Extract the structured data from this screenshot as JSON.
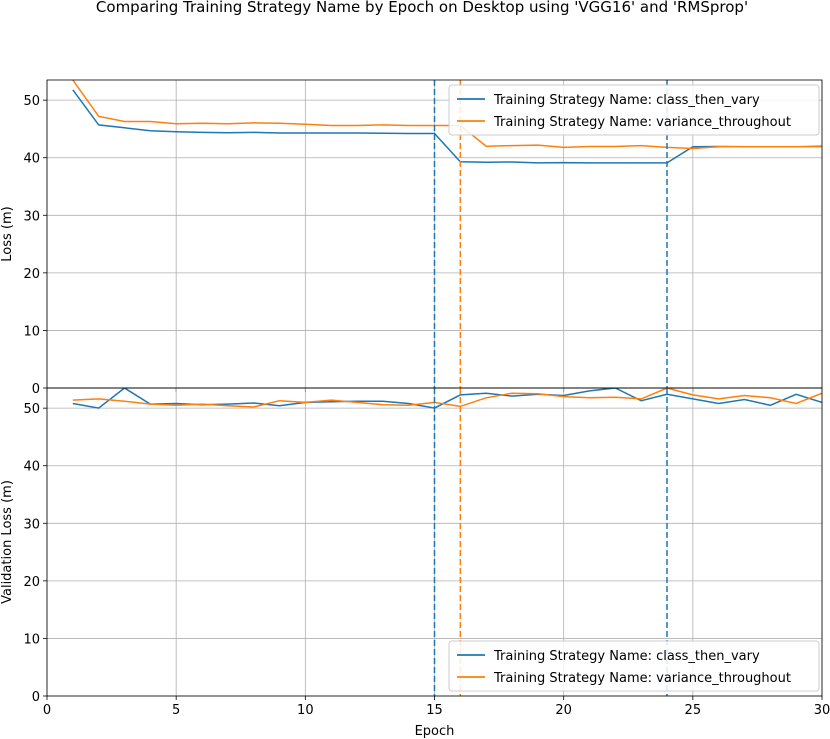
{
  "title": "Comparing Training Strategy Name by Epoch on Desktop using 'VGG16' and 'RMSprop'",
  "chart_data": [
    {
      "type": "line",
      "ylabel": "Loss (m)",
      "xlim": [
        0,
        30
      ],
      "ylim": [
        0,
        53.5
      ],
      "yticks": [
        0,
        10,
        20,
        30,
        40,
        50
      ],
      "grid": true,
      "legend": "top-right",
      "x": [
        1,
        2,
        3,
        4,
        5,
        6,
        7,
        8,
        9,
        10,
        11,
        12,
        13,
        14,
        15,
        16,
        17,
        18,
        19,
        20,
        21,
        22,
        23,
        24,
        25,
        26,
        27,
        28,
        29,
        30
      ],
      "series": [
        {
          "name": "Training Strategy Name: class_then_vary",
          "color": "#1f77b4",
          "values": [
            51.8,
            45.7,
            45.2,
            44.7,
            44.5,
            44.4,
            44.35,
            44.4,
            44.3,
            44.3,
            44.3,
            44.3,
            44.25,
            44.2,
            44.2,
            39.3,
            39.2,
            39.25,
            39.1,
            39.15,
            39.1,
            39.1,
            39.1,
            39.1,
            41.9,
            41.95,
            41.9,
            41.9,
            41.9,
            42.0
          ]
        },
        {
          "name": "Training Strategy Name: variance_throughout",
          "color": "#ff7f0e",
          "values": [
            53.5,
            47.2,
            46.3,
            46.3,
            45.9,
            46.0,
            45.9,
            46.05,
            46.0,
            45.8,
            45.6,
            45.6,
            45.7,
            45.6,
            45.6,
            45.6,
            42.0,
            42.1,
            42.2,
            41.8,
            41.95,
            41.95,
            42.1,
            41.8,
            41.6,
            41.9,
            41.9,
            41.9,
            41.9,
            41.9
          ]
        }
      ],
      "vlines": [
        {
          "x": 15,
          "color": "#1f77b4"
        },
        {
          "x": 16,
          "color": "#ff7f0e"
        },
        {
          "x": 24,
          "color": "#1f77b4"
        }
      ]
    },
    {
      "type": "line",
      "xlabel": "Epoch",
      "ylabel": "Validation Loss (m)",
      "xlim": [
        0,
        30
      ],
      "ylim": [
        0,
        53.5
      ],
      "xticks": [
        0,
        5,
        10,
        15,
        20,
        25,
        30
      ],
      "yticks": [
        0,
        10,
        20,
        30,
        40,
        50
      ],
      "grid": true,
      "legend": "bottom-right",
      "x": [
        1,
        2,
        3,
        4,
        5,
        6,
        7,
        8,
        9,
        10,
        11,
        12,
        13,
        14,
        15,
        16,
        17,
        18,
        19,
        20,
        21,
        22,
        23,
        24,
        25,
        26,
        27,
        28,
        29,
        30
      ],
      "series": [
        {
          "name": "Training Strategy Name: class_then_vary",
          "color": "#1f77b4",
          "values": [
            50.8,
            50.0,
            53.5,
            50.7,
            50.8,
            50.6,
            50.7,
            50.9,
            50.4,
            51.0,
            51.1,
            51.2,
            51.2,
            50.8,
            50.0,
            52.3,
            52.6,
            52.1,
            52.4,
            52.2,
            53.0,
            53.5,
            51.3,
            52.4,
            51.6,
            50.8,
            51.5,
            50.5,
            52.4,
            51.0
          ]
        },
        {
          "name": "Training Strategy Name: variance_throughout",
          "color": "#ff7f0e",
          "values": [
            51.4,
            51.6,
            51.2,
            50.7,
            50.5,
            50.7,
            50.4,
            50.2,
            51.3,
            51.0,
            51.4,
            51.0,
            50.6,
            50.5,
            51.0,
            50.3,
            51.8,
            52.6,
            52.5,
            52.0,
            51.8,
            51.9,
            51.6,
            53.5,
            52.3,
            51.6,
            52.2,
            51.8,
            50.8,
            52.6
          ]
        }
      ],
      "vlines": [
        {
          "x": 15,
          "color": "#1f77b4"
        },
        {
          "x": 16,
          "color": "#ff7f0e"
        },
        {
          "x": 24,
          "color": "#1f77b4"
        }
      ]
    }
  ]
}
